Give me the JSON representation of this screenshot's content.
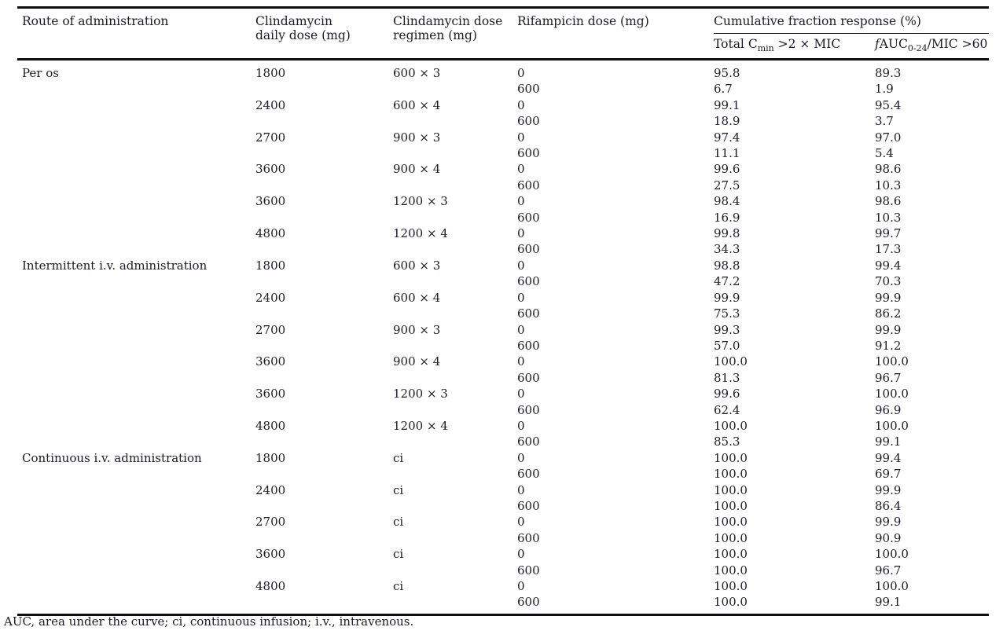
{
  "colors": {
    "background": "#ffffff",
    "text": "#1c1c28",
    "rule": "#0d0d12"
  },
  "table": {
    "headers": {
      "route": "Route of administration",
      "daily_dose_line1": "Clindamycin",
      "daily_dose_line2": "daily dose (mg)",
      "regimen_line1": "Clindamycin dose",
      "regimen_line2": "regimen (mg)",
      "rifampicin": "Rifampicin dose (mg)",
      "cfr_group": "Cumulative fraction response (%)",
      "cmin": {
        "pre": "Total C",
        "sub": "min",
        "post": " >2 × MIC"
      },
      "fauc": {
        "f": "f",
        "pre": "AUC",
        "sub": "0-24",
        "post": "/MIC >60"
      }
    },
    "sections": [
      {
        "route": "Per os",
        "groups": [
          {
            "daily_dose": "1800",
            "regimen": "600 × 3",
            "rows": [
              {
                "rifampicin": "0",
                "cmin": "95.8",
                "fauc": "89.3"
              },
              {
                "rifampicin": "600",
                "cmin": "6.7",
                "fauc": "1.9"
              }
            ]
          },
          {
            "daily_dose": "2400",
            "regimen": "600 × 4",
            "rows": [
              {
                "rifampicin": "0",
                "cmin": "99.1",
                "fauc": "95.4"
              },
              {
                "rifampicin": "600",
                "cmin": "18.9",
                "fauc": "3.7"
              }
            ]
          },
          {
            "daily_dose": "2700",
            "regimen": "900 × 3",
            "rows": [
              {
                "rifampicin": "0",
                "cmin": "97.4",
                "fauc": "97.0"
              },
              {
                "rifampicin": "600",
                "cmin": "11.1",
                "fauc": "5.4"
              }
            ]
          },
          {
            "daily_dose": "3600",
            "regimen": "900 × 4",
            "rows": [
              {
                "rifampicin": "0",
                "cmin": "99.6",
                "fauc": "98.6"
              },
              {
                "rifampicin": "600",
                "cmin": "27.5",
                "fauc": "10.3"
              }
            ]
          },
          {
            "daily_dose": "3600",
            "regimen": "1200 × 3",
            "rows": [
              {
                "rifampicin": "0",
                "cmin": "98.4",
                "fauc": "98.6"
              },
              {
                "rifampicin": "600",
                "cmin": "16.9",
                "fauc": "10.3"
              }
            ]
          },
          {
            "daily_dose": "4800",
            "regimen": "1200 × 4",
            "rows": [
              {
                "rifampicin": "0",
                "cmin": "99.8",
                "fauc": "99.7"
              },
              {
                "rifampicin": "600",
                "cmin": "34.3",
                "fauc": "17.3"
              }
            ]
          }
        ]
      },
      {
        "route": "Intermittent i.v. administration",
        "groups": [
          {
            "daily_dose": "1800",
            "regimen": "600 × 3",
            "rows": [
              {
                "rifampicin": "0",
                "cmin": "98.8",
                "fauc": "99.4"
              },
              {
                "rifampicin": "600",
                "cmin": "47.2",
                "fauc": "70.3"
              }
            ]
          },
          {
            "daily_dose": "2400",
            "regimen": "600 × 4",
            "rows": [
              {
                "rifampicin": "0",
                "cmin": "99.9",
                "fauc": "99.9"
              },
              {
                "rifampicin": "600",
                "cmin": "75.3",
                "fauc": "86.2"
              }
            ]
          },
          {
            "daily_dose": "2700",
            "regimen": "900 × 3",
            "rows": [
              {
                "rifampicin": "0",
                "cmin": "99.3",
                "fauc": "99.9"
              },
              {
                "rifampicin": "600",
                "cmin": "57.0",
                "fauc": "91.2"
              }
            ]
          },
          {
            "daily_dose": "3600",
            "regimen": "900 × 4",
            "rows": [
              {
                "rifampicin": "0",
                "cmin": "100.0",
                "fauc": "100.0"
              },
              {
                "rifampicin": "600",
                "cmin": "81.3",
                "fauc": "96.7"
              }
            ]
          },
          {
            "daily_dose": "3600",
            "regimen": "1200 × 3",
            "rows": [
              {
                "rifampicin": "0",
                "cmin": "99.6",
                "fauc": "100.0"
              },
              {
                "rifampicin": "600",
                "cmin": "62.4",
                "fauc": "96.9"
              }
            ]
          },
          {
            "daily_dose": "4800",
            "regimen": "1200 × 4",
            "rows": [
              {
                "rifampicin": "0",
                "cmin": "100.0",
                "fauc": "100.0"
              },
              {
                "rifampicin": "600",
                "cmin": "85.3",
                "fauc": "99.1"
              }
            ]
          }
        ]
      },
      {
        "route": "Continuous i.v. administration",
        "groups": [
          {
            "daily_dose": "1800",
            "regimen": "ci",
            "rows": [
              {
                "rifampicin": "0",
                "cmin": "100.0",
                "fauc": "99.4"
              },
              {
                "rifampicin": "600",
                "cmin": "100.0",
                "fauc": "69.7"
              }
            ]
          },
          {
            "daily_dose": "2400",
            "regimen": "ci",
            "rows": [
              {
                "rifampicin": "0",
                "cmin": "100.0",
                "fauc": "99.9"
              },
              {
                "rifampicin": "600",
                "cmin": "100.0",
                "fauc": "86.4"
              }
            ]
          },
          {
            "daily_dose": "2700",
            "regimen": "ci",
            "rows": [
              {
                "rifampicin": "0",
                "cmin": "100.0",
                "fauc": "99.9"
              },
              {
                "rifampicin": "600",
                "cmin": "100.0",
                "fauc": "90.9"
              }
            ]
          },
          {
            "daily_dose": "3600",
            "regimen": "ci",
            "rows": [
              {
                "rifampicin": "0",
                "cmin": "100.0",
                "fauc": "100.0"
              },
              {
                "rifampicin": "600",
                "cmin": "100.0",
                "fauc": "96.7"
              }
            ]
          },
          {
            "daily_dose": "4800",
            "regimen": "ci",
            "rows": [
              {
                "rifampicin": "0",
                "cmin": "100.0",
                "fauc": "100.0"
              },
              {
                "rifampicin": "600",
                "cmin": "100.0",
                "fauc": "99.1"
              }
            ]
          }
        ]
      }
    ],
    "footnote": "AUC, area under the curve; ci, continuous infusion; i.v., intravenous."
  }
}
